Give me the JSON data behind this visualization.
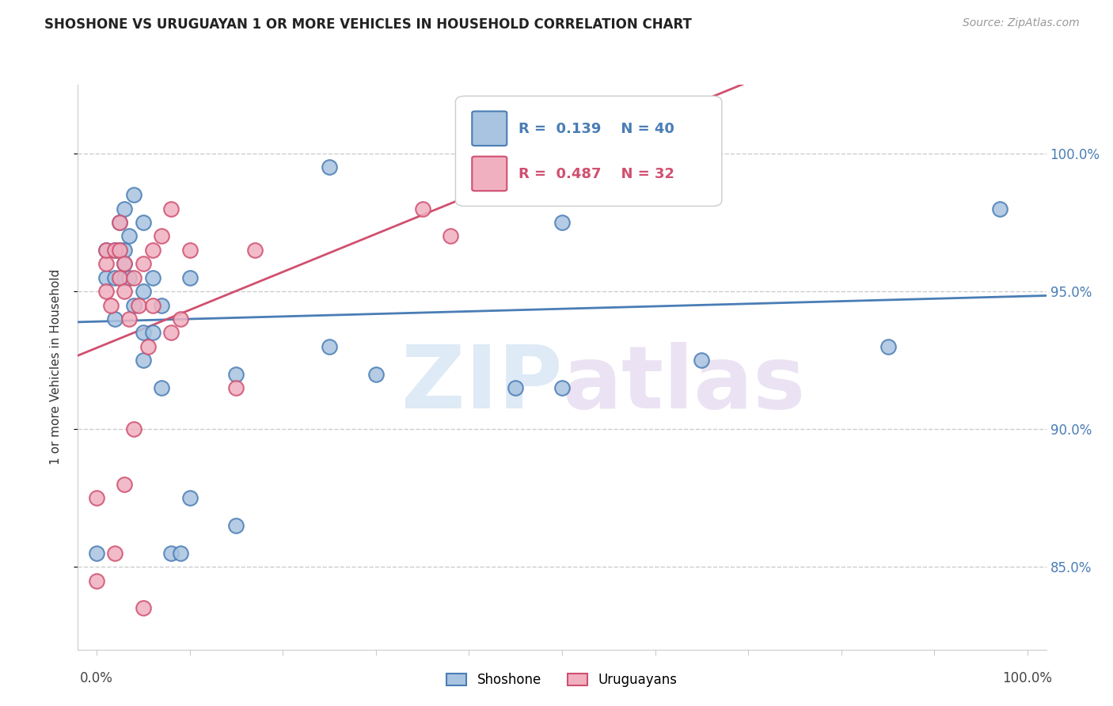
{
  "title": "SHOSHONE VS URUGUAYAN 1 OR MORE VEHICLES IN HOUSEHOLD CORRELATION CHART",
  "source": "Source: ZipAtlas.com",
  "ylabel": "1 or more Vehicles in Household",
  "legend_shoshone": "Shoshone",
  "legend_uruguayans": "Uruguayans",
  "R_shoshone": 0.139,
  "N_shoshone": 40,
  "R_uruguayans": 0.487,
  "N_uruguayans": 32,
  "yticks": [
    85.0,
    90.0,
    95.0,
    100.0
  ],
  "ytick_labels": [
    "85.0%",
    "90.0%",
    "95.0%",
    "100.0%"
  ],
  "watermark_zip": "ZIP",
  "watermark_atlas": "atlas",
  "shoshone_color": "#a8c4e0",
  "shoshone_line_color": "#4a7db5",
  "uruguayans_color": "#f0b0c0",
  "uruguayans_line_color": "#d05070",
  "background_color": "#ffffff",
  "grid_color": "#cccccc",
  "shoshone_x": [
    0.0,
    0.01,
    0.01,
    0.02,
    0.02,
    0.02,
    0.025,
    0.025,
    0.03,
    0.03,
    0.03,
    0.03,
    0.035,
    0.035,
    0.04,
    0.04,
    0.05,
    0.05,
    0.05,
    0.05,
    0.06,
    0.06,
    0.07,
    0.07,
    0.08,
    0.09,
    0.1,
    0.1,
    0.15,
    0.15,
    0.25,
    0.25,
    0.3,
    0.45,
    0.5,
    0.5,
    0.6,
    0.65,
    0.85,
    0.97
  ],
  "shoshone_y": [
    85.5,
    95.5,
    96.5,
    94.0,
    95.5,
    96.5,
    96.5,
    97.5,
    95.5,
    96.0,
    96.5,
    98.0,
    95.5,
    97.0,
    94.5,
    98.5,
    92.5,
    93.5,
    95.0,
    97.5,
    93.5,
    95.5,
    91.5,
    94.5,
    85.5,
    85.5,
    87.5,
    95.5,
    92.0,
    86.5,
    93.0,
    99.5,
    92.0,
    91.5,
    91.5,
    97.5,
    99.0,
    92.5,
    93.0,
    98.0
  ],
  "uruguayans_x": [
    0.0,
    0.0,
    0.01,
    0.01,
    0.01,
    0.015,
    0.02,
    0.02,
    0.025,
    0.025,
    0.025,
    0.03,
    0.03,
    0.03,
    0.035,
    0.04,
    0.04,
    0.045,
    0.05,
    0.05,
    0.055,
    0.06,
    0.06,
    0.07,
    0.08,
    0.08,
    0.09,
    0.1,
    0.15,
    0.17,
    0.35,
    0.38
  ],
  "uruguayans_y": [
    84.5,
    87.5,
    95.0,
    96.0,
    96.5,
    94.5,
    85.5,
    96.5,
    95.5,
    96.5,
    97.5,
    88.0,
    95.0,
    96.0,
    94.0,
    90.0,
    95.5,
    94.5,
    83.5,
    96.0,
    93.0,
    94.5,
    96.5,
    97.0,
    93.5,
    98.0,
    94.0,
    96.5,
    91.5,
    96.5,
    98.0,
    97.0
  ],
  "xmin": -0.02,
  "xmax": 1.02,
  "ymin": 82.0,
  "ymax": 102.5
}
